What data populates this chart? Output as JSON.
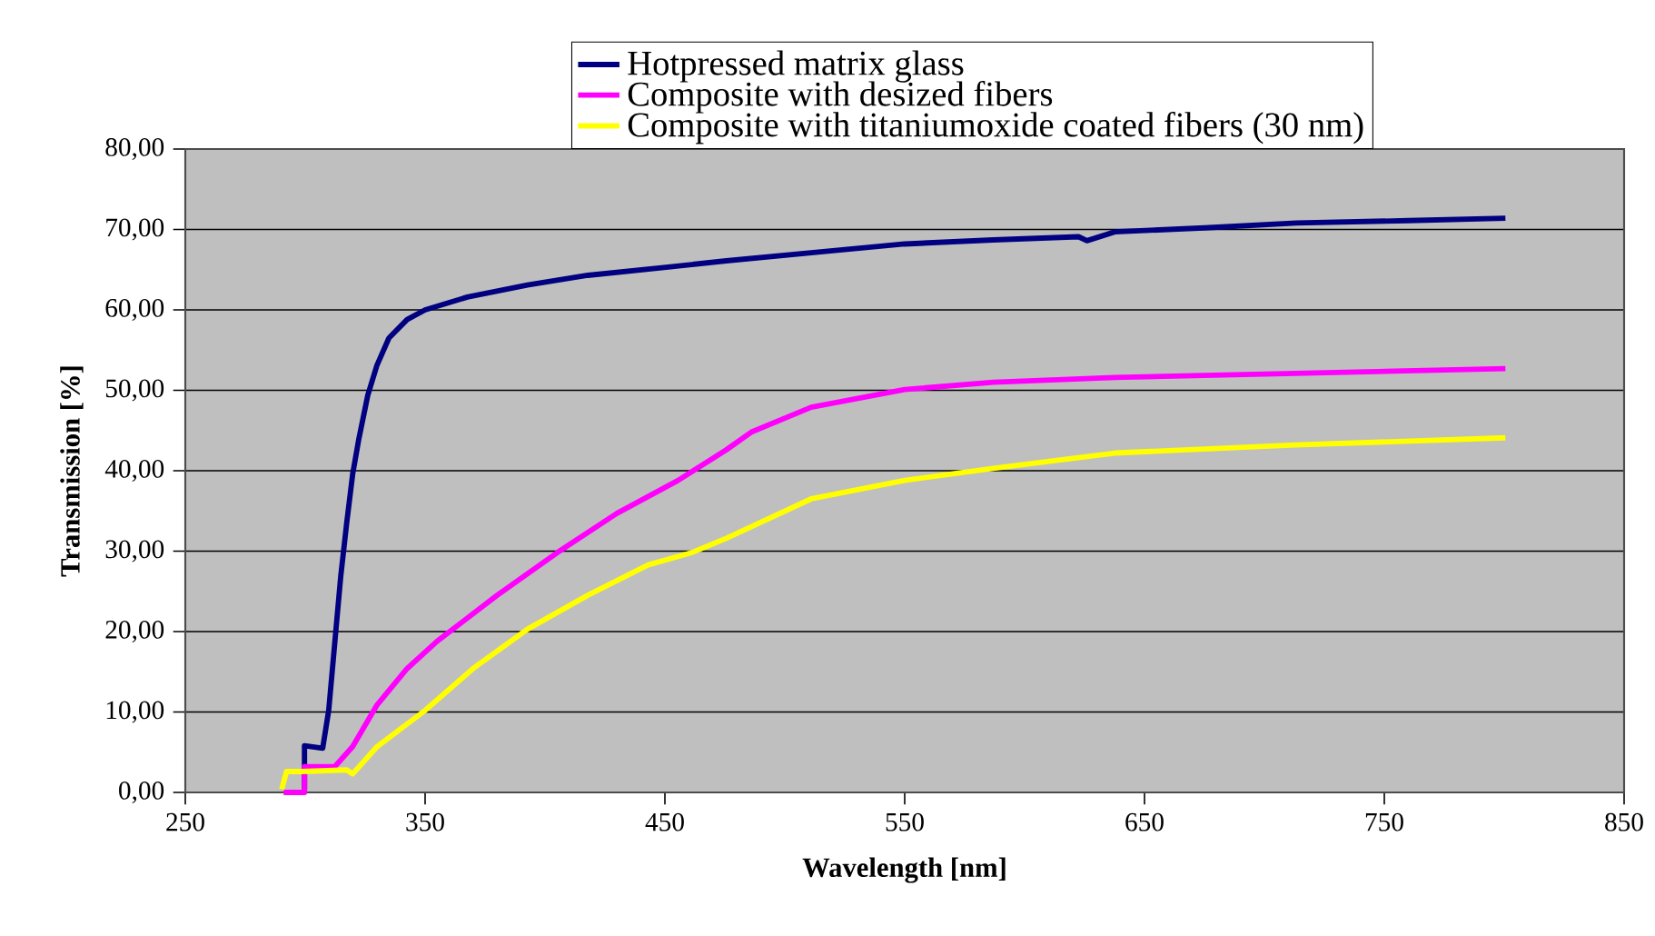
{
  "chart_data": {
    "type": "line",
    "xlabel": "Wavelength [nm]",
    "ylabel": "Transmission [%]",
    "xlim": [
      250,
      850
    ],
    "xticks": [
      250,
      350,
      450,
      550,
      650,
      750,
      850
    ],
    "ylim": [
      0,
      80
    ],
    "yticks": [
      {
        "value": 0,
        "label": "0,00"
      },
      {
        "value": 10,
        "label": "10,00"
      },
      {
        "value": 20,
        "label": "20,00"
      },
      {
        "value": 30,
        "label": "30,00"
      },
      {
        "value": 40,
        "label": "40,00"
      },
      {
        "value": 50,
        "label": "50,00"
      },
      {
        "value": 60,
        "label": "60,00"
      },
      {
        "value": 70,
        "label": "70,00"
      },
      {
        "value": 80,
        "label": "80,00"
      }
    ],
    "grid": "y",
    "legend": "top",
    "marker": "none",
    "line_style": "solid",
    "series": [
      {
        "name": "Hotpressed matrix glass",
        "color": "#000080",
        "x": [
          299.7,
          299.7,
          307.3,
          309.8,
          312.3,
          314.8,
          317.3,
          319.8,
          322.4,
          326.1,
          329.9,
          334.9,
          342.5,
          350,
          367.6,
          392.7,
          417.8,
          450.5,
          475.6,
          511,
          550,
          587,
          622.5,
          626,
          637.6,
          675,
          713.4,
          760,
          800.5
        ],
        "values": [
          0.4,
          5.8,
          5.5,
          10.2,
          18.5,
          26.8,
          33.5,
          39.6,
          44,
          49.4,
          53.1,
          56.5,
          58.8,
          60,
          61.6,
          63.1,
          64.3,
          65.3,
          66.1,
          67.1,
          68.2,
          68.7,
          69.1,
          68.6,
          69.7,
          70.2,
          70.8,
          71.1,
          71.4
        ]
      },
      {
        "name": "Composite with desized fibers",
        "color": "#ff00ff",
        "x": [
          291,
          299.7,
          299.7,
          312.3,
          319.8,
          330,
          342.5,
          355,
          380,
          405,
          430,
          455.5,
          475.6,
          486,
          511,
          550,
          587,
          637.6,
          713,
          800.5
        ],
        "values": [
          0,
          0,
          3.2,
          3.2,
          5.7,
          10.9,
          15.4,
          18.8,
          24.5,
          29.8,
          34.7,
          38.8,
          42.6,
          44.8,
          47.9,
          50.1,
          51,
          51.6,
          52.1,
          52.7
        ]
      },
      {
        "name": "Composite with titaniumoxide coated fibers (30 nm)",
        "color": "#ffff00",
        "x": [
          290.2,
          292.2,
          298.5,
          317.3,
          319.8,
          330,
          350,
          370,
          392.7,
          417.8,
          443,
          461,
          475.6,
          511,
          550,
          587,
          637.6,
          713,
          800.5
        ],
        "values": [
          0.4,
          2.6,
          2.6,
          2.8,
          2.3,
          5.7,
          10.2,
          15.4,
          20.3,
          24.5,
          28.3,
          29.8,
          31.6,
          36.5,
          38.8,
          40.3,
          42.2,
          43.2,
          44.1
        ]
      }
    ]
  }
}
